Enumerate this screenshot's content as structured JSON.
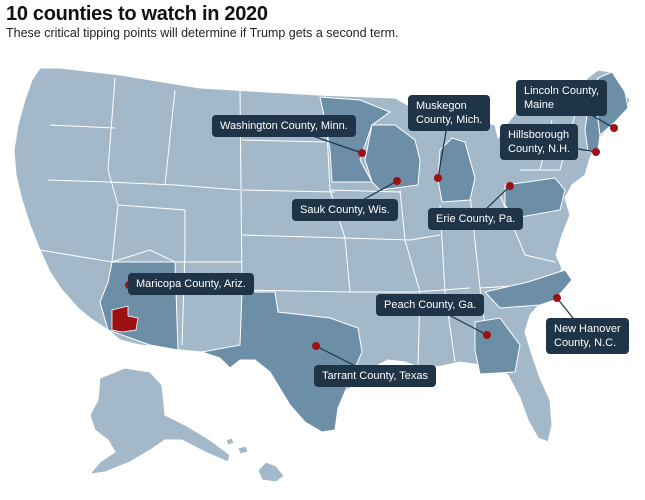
{
  "title": "10 counties to watch in 2020",
  "subtitle": "These critical tipping points will determine if Trump gets a second term.",
  "colors": {
    "background": "#ffffff",
    "land": "#a3b9c9",
    "highlight_state": "#6d8ea7",
    "state_border": "#ffffff",
    "county_marker": "#9c1212",
    "label_bg": "#1f3447",
    "label_text": "#ffffff"
  },
  "counties": [
    {
      "id": "lincoln",
      "name": "Lincoln County,\nMaine",
      "state": "Maine"
    },
    {
      "id": "muskegon",
      "name": "Muskegon\nCounty, Mich.",
      "state": "Michigan"
    },
    {
      "id": "washington",
      "name": "Washington County, Minn.",
      "state": "Minnesota"
    },
    {
      "id": "hillsborough",
      "name": "Hillsborough\nCounty, N.H.",
      "state": "New Hampshire"
    },
    {
      "id": "sauk",
      "name": "Sauk County, Wis.",
      "state": "Wisconsin"
    },
    {
      "id": "erie",
      "name": "Erie County, Pa.",
      "state": "Pennsylvania"
    },
    {
      "id": "maricopa",
      "name": "Maricopa County, Ariz.",
      "state": "Arizona"
    },
    {
      "id": "peach",
      "name": "Peach County, Ga.",
      "state": "Georgia"
    },
    {
      "id": "newhanover",
      "name": "New Hanover\nCounty, N.C.",
      "state": "North Carolina"
    },
    {
      "id": "tarrant",
      "name": "Tarrant County, Texas",
      "state": "Texas"
    }
  ]
}
